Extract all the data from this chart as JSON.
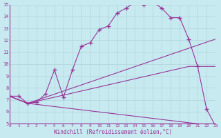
{
  "xlabel": "Windchill (Refroidissement éolien,°C)",
  "xlim": [
    0,
    23
  ],
  "ylim": [
    5,
    15
  ],
  "xtick_labels": [
    "0",
    "1",
    "2",
    "3",
    "4",
    "5",
    "6",
    "7",
    "8",
    "9",
    "10",
    "11",
    "12",
    "13",
    "14",
    "15",
    "16",
    "17",
    "18",
    "19",
    "20",
    "21",
    "22",
    "23"
  ],
  "ytick_labels": [
    "5",
    "6",
    "7",
    "8",
    "9",
    "10",
    "11",
    "12",
    "13",
    "14",
    "15"
  ],
  "background_color": "#c6eaf0",
  "line_color": "#993399",
  "grid_color": "#b0d4d8",
  "line1_x": [
    0,
    1,
    2,
    3,
    4,
    5,
    6,
    7,
    8,
    9,
    10,
    11,
    12,
    13,
    14,
    15,
    16,
    17,
    18,
    19,
    20,
    21,
    22,
    23
  ],
  "line1_y": [
    7.3,
    7.3,
    6.7,
    6.8,
    7.5,
    9.5,
    7.2,
    9.5,
    11.5,
    11.8,
    12.9,
    13.2,
    14.3,
    14.7,
    15.2,
    15.0,
    15.2,
    14.7,
    13.9,
    13.9,
    12.1,
    9.8,
    6.2,
    4.8
  ],
  "line2_x": [
    0,
    2,
    23
  ],
  "line2_y": [
    7.3,
    6.7,
    12.1
  ],
  "line3_x": [
    0,
    2,
    20,
    23
  ],
  "line3_y": [
    7.3,
    6.7,
    9.8,
    9.8
  ],
  "line4_x": [
    0,
    2,
    23
  ],
  "line4_y": [
    7.3,
    6.7,
    4.8
  ]
}
